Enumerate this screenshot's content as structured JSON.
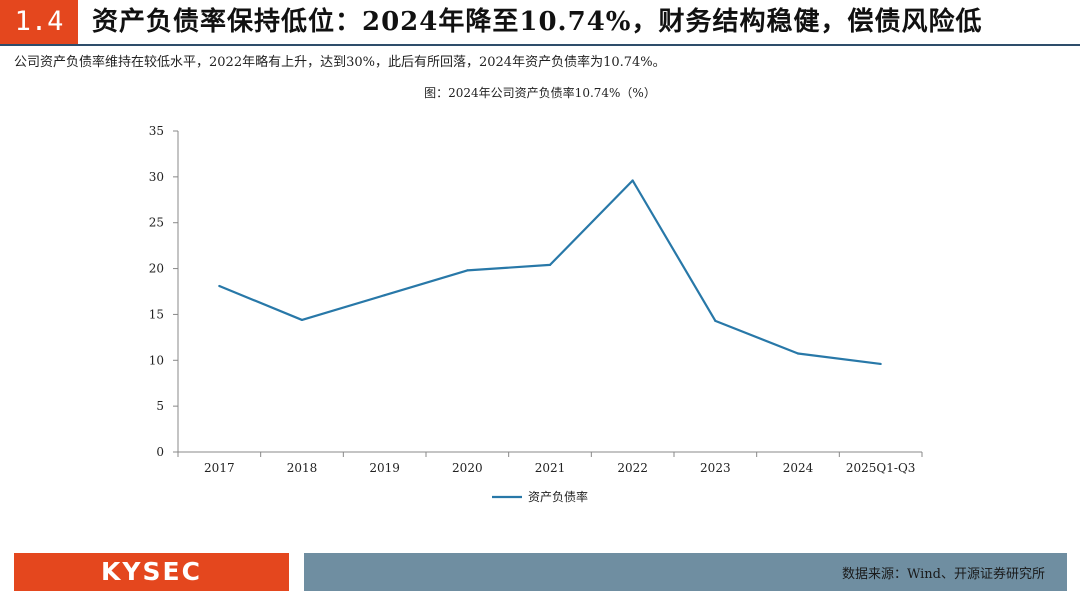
{
  "header": {
    "section_number": "1.4",
    "title": "资产负债率保持低位：2024年降至10.74%，财务结构稳健，偿债风险低"
  },
  "subtitle": "公司资产负债率维持在较低水平，2022年略有上升，达到30%，此后有所回落，2024年资产负债率为10.74%。",
  "chart_data": {
    "type": "line",
    "title": "图：2024年公司资产负债率10.74%（%）",
    "categories": [
      "2017",
      "2018",
      "2019",
      "2020",
      "2021",
      "2022",
      "2023",
      "2024",
      "2025Q1-Q3"
    ],
    "series": [
      {
        "name": "资产负债率",
        "values": [
          18.1,
          14.4,
          17.1,
          19.8,
          20.4,
          29.6,
          14.3,
          10.74,
          9.6
        ]
      }
    ],
    "yticks": [
      0,
      5,
      10,
      15,
      20,
      25,
      30,
      35
    ],
    "ylim": [
      0,
      35
    ],
    "grid": false,
    "legend": "bottom",
    "line_color": "#2878a8"
  },
  "footer": {
    "logo": "KYSEC",
    "source": "数据来源：Wind、开源证券研究所"
  },
  "colors": {
    "accent": "#e4471e",
    "navy": "#2e4d6b",
    "footer_bar": "#6f8ea1"
  }
}
